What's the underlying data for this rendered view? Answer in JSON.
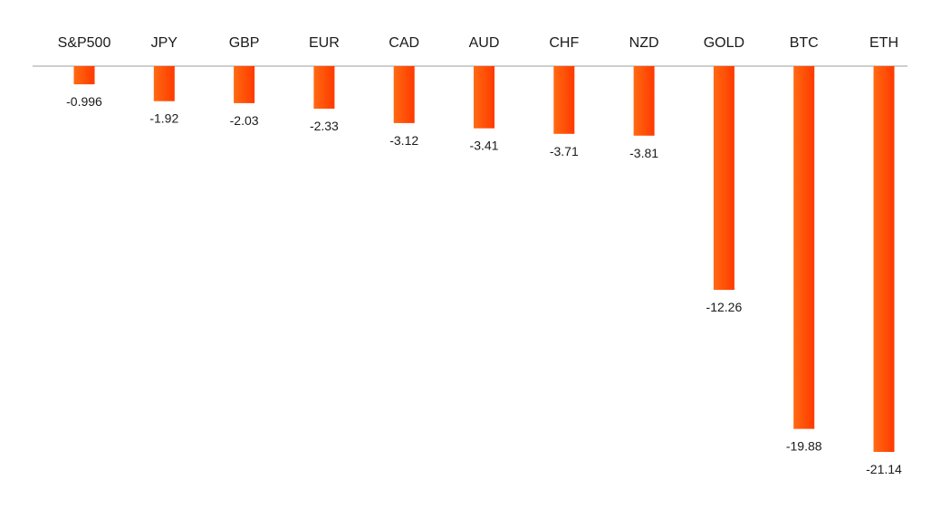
{
  "chart_data": {
    "type": "bar",
    "orientation": "vertical",
    "categories": [
      "S&P500",
      "JPY",
      "GBP",
      "EUR",
      "CAD",
      "AUD",
      "CHF",
      "NZD",
      "GOLD",
      "BTC",
      "ETH"
    ],
    "series": [
      {
        "values": [
          -0.996,
          -1.92,
          -2.03,
          -2.33,
          -3.12,
          -3.41,
          -3.71,
          -3.81,
          -12.26,
          -19.88,
          -21.14
        ]
      }
    ],
    "value_labels": [
      "-0.996",
      "-1.92",
      "-2.03",
      "-2.33",
      "-3.12",
      "-3.41",
      "-3.71",
      "-3.81",
      "-12.26",
      "-19.88",
      "-21.14"
    ],
    "title": "",
    "xlabel": "",
    "ylabel": "",
    "ylim": [
      -21.14,
      0
    ],
    "grid": false,
    "legend": "none",
    "category_label_position": "top",
    "colors": {
      "bar_top": "#ff6a12",
      "bar_bottom": "#ff3a00",
      "axis_line": "#bfbfbf",
      "text": "#1a1a1a"
    }
  }
}
